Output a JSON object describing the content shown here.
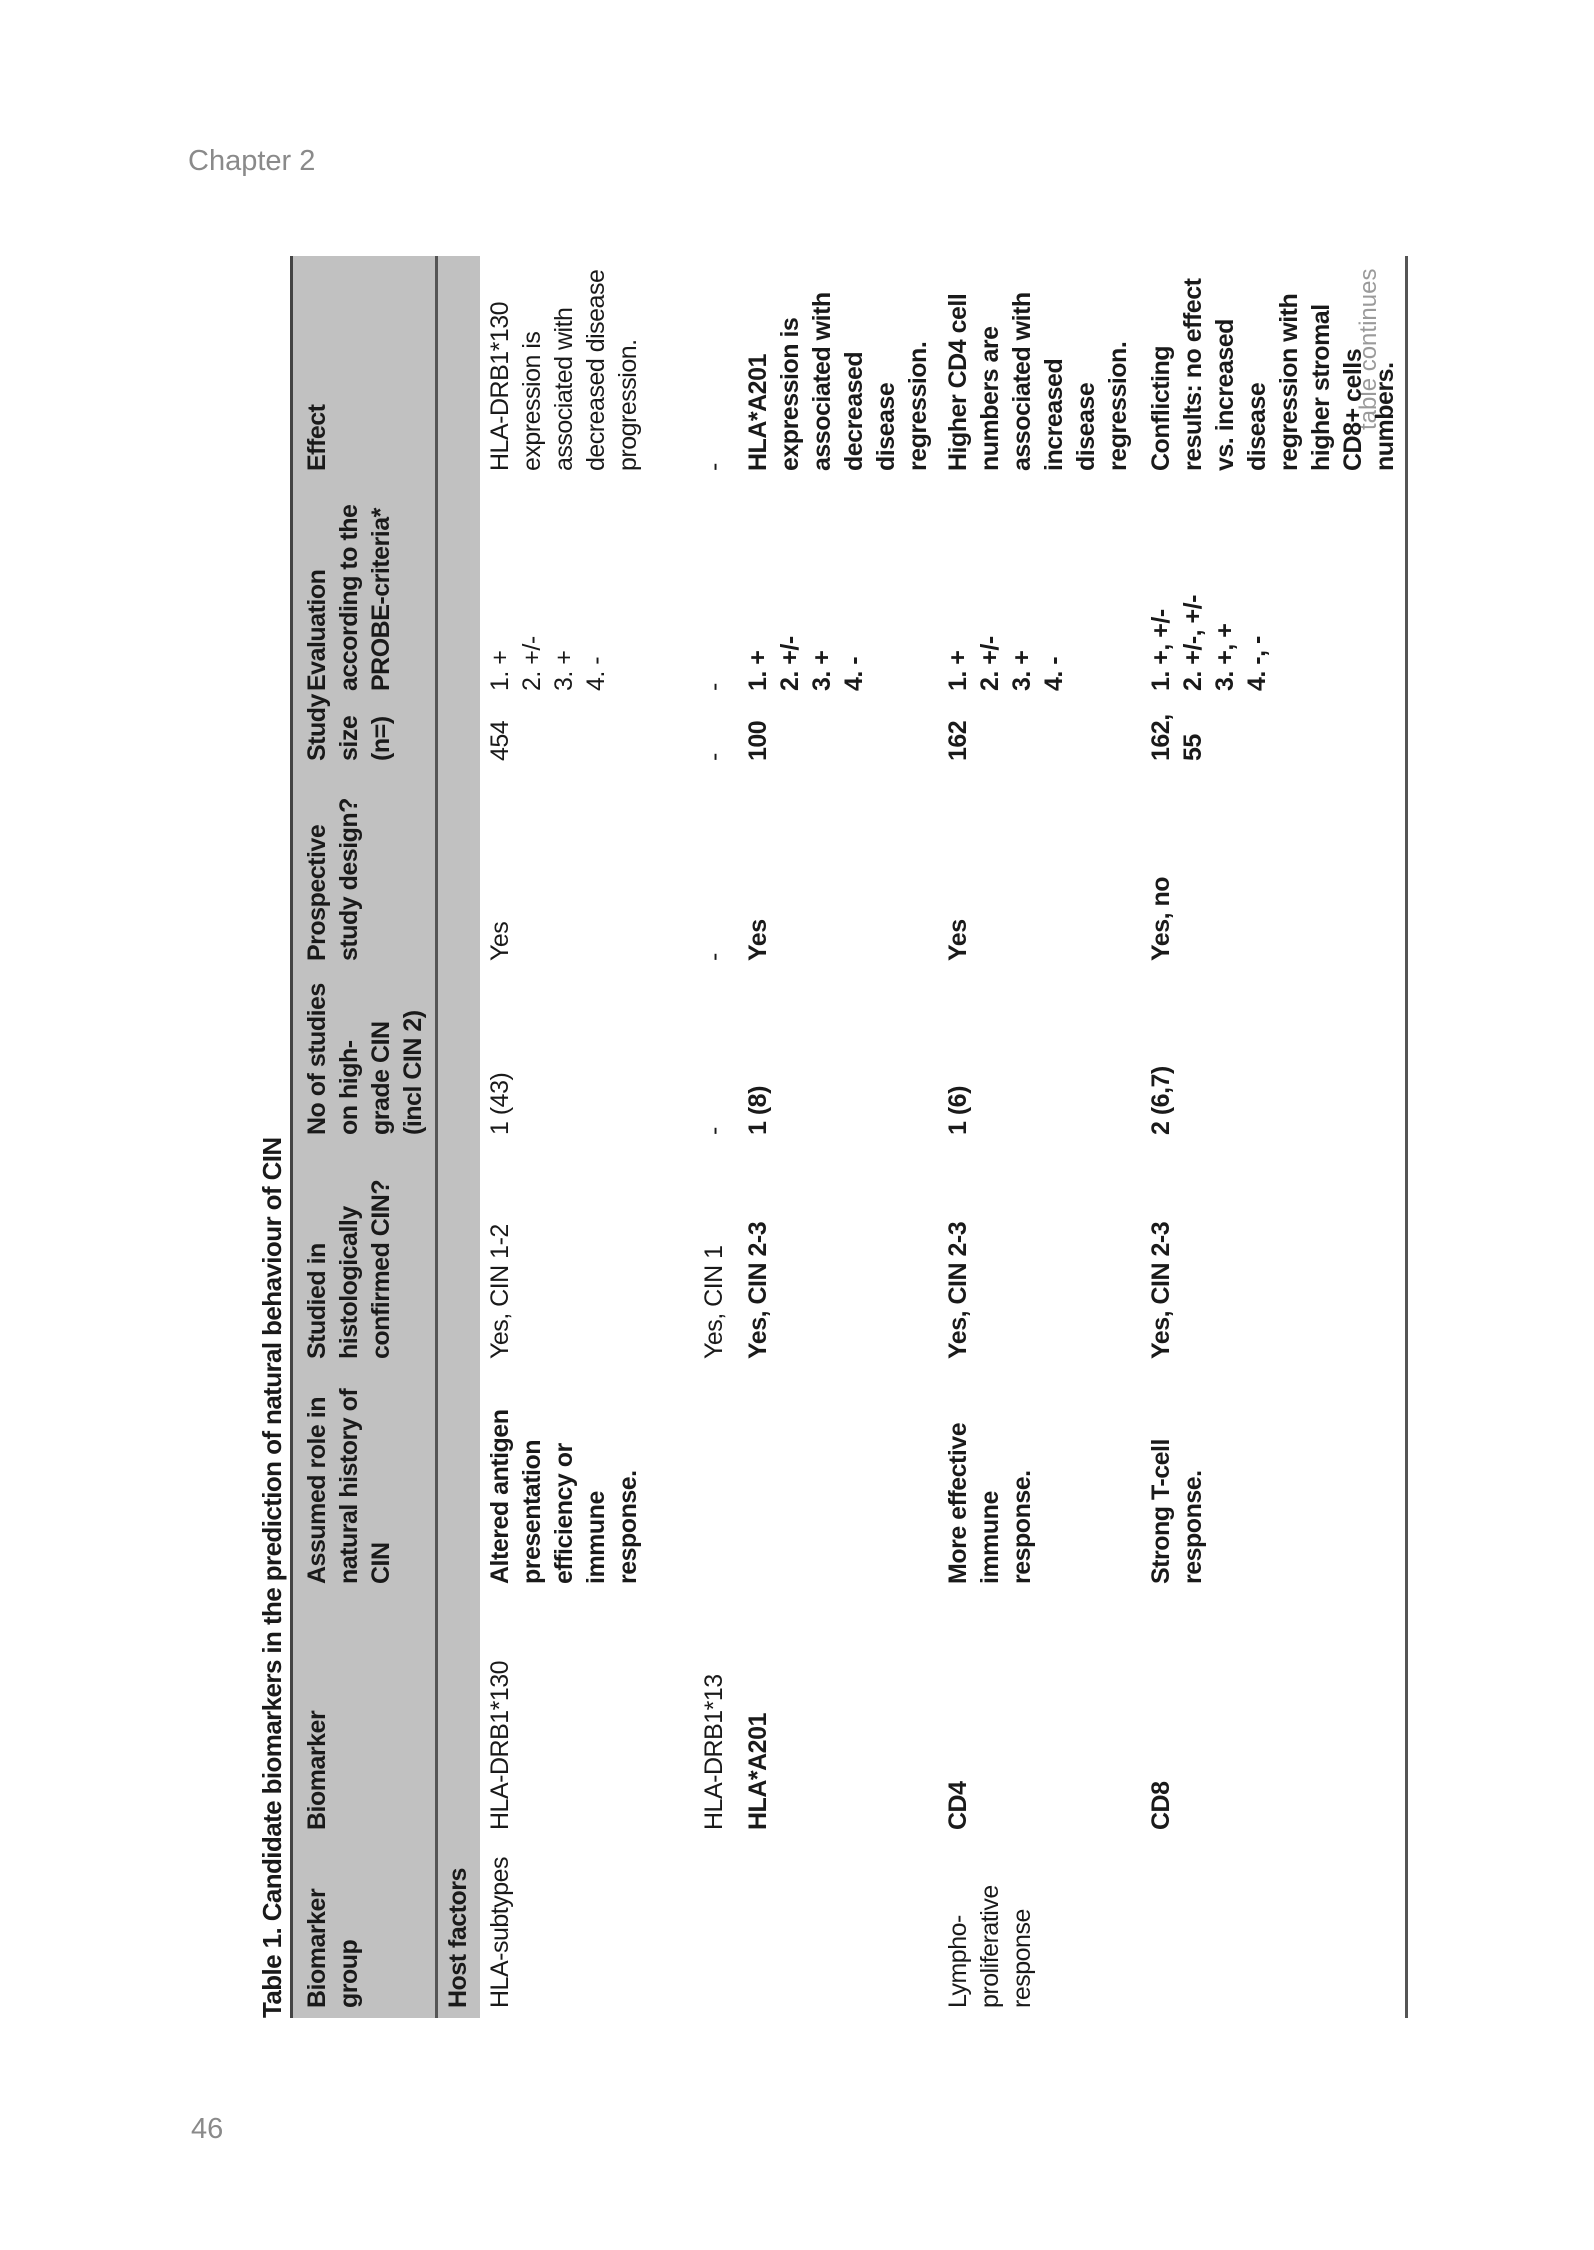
{
  "running_head": "Chapter 2",
  "page_number": "46",
  "table_continues": "table continues",
  "table": {
    "title": "Table 1. Candidate biomarkers in the prediction of natural behaviour of CIN",
    "headers": [
      "Biomarker group",
      "Biomarker",
      "Assumed role in natural history of CIN",
      "Studied in histologically confirmed CIN?",
      "No of studies on high-grade CIN (incl CIN 2)",
      "Prospective study design?",
      "Study size (n=)",
      "Evaluation according to the PROBE-criteria*",
      "Effect"
    ],
    "section": "Host factors",
    "rows": [
      {
        "bold": false,
        "cells": [
          "HLA-subtypes",
          "HLA-DRB1*130",
          "Altered antigen presentation efficiency or immune response.",
          "Yes, CIN 1-2",
          "1 (43)",
          "Yes",
          "454",
          "1. +\n2. +/-\n3. +\n4. -",
          "HLA-DRB1*130 expression is associated with decreased disease progression."
        ]
      },
      {
        "bold": false,
        "cells": [
          "",
          "HLA-DRB1*13",
          "",
          "Yes, CIN 1",
          "-",
          "-",
          "-",
          "-",
          "-"
        ]
      },
      {
        "bold": true,
        "cells": [
          "",
          "HLA*A201",
          "",
          "Yes, CIN 2-3",
          "1 (8)",
          "Yes",
          "100",
          "1. +\n2. +/-\n3. +\n4. -",
          "HLA*A201 expression is associated with decreased disease regression."
        ]
      },
      {
        "bold": true,
        "cells": [
          "Lympho-proliferative response",
          "CD4",
          "More effective immune response.",
          "Yes, CIN 2-3",
          "1 (6)",
          "Yes",
          "162",
          "1. +\n2. +/-\n3. +\n4. -",
          "Higher CD4 cell numbers are associated with increased disease regression."
        ]
      },
      {
        "bold": true,
        "cells": [
          "",
          "CD8",
          "Strong T-cell response.",
          "Yes, CIN 2-3",
          "2 (6,7)",
          "Yes, no",
          "162, 55",
          "1. +, +/-\n2. +/-, +/-\n3. +, +\n4. -, -",
          "Conflicting results: no effect vs. increased disease regression with higher stromal CD8+ cells numbers."
        ]
      }
    ]
  }
}
